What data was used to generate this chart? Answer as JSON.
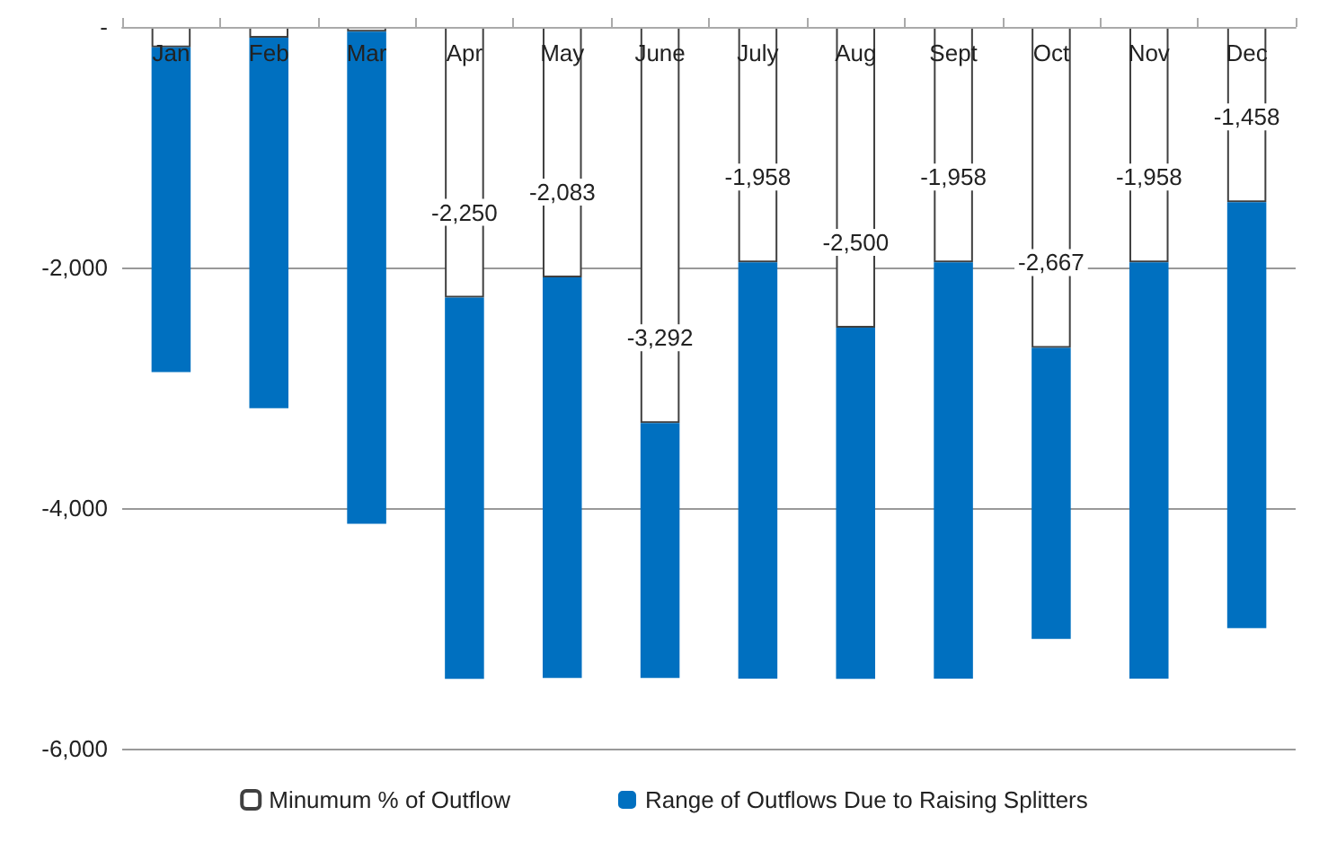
{
  "chart_data": {
    "type": "bar",
    "stacked": true,
    "categories": [
      "Jan",
      "Feb",
      "Mar",
      "Apr",
      "May",
      "June",
      "July",
      "Aug",
      "Sept",
      "Oct",
      "Nov",
      "Dec"
    ],
    "series": [
      {
        "name": "Minumum % of Outflow",
        "color": "#ffffff",
        "values": [
          -170,
          -90,
          -40,
          -2250,
          -2083,
          -3292,
          -1958,
          -2500,
          -1958,
          -2667,
          -1958,
          -1458
        ],
        "value_labels": [
          null,
          null,
          null,
          "-2,250",
          "-2,083",
          "-3,292",
          "-1,958",
          "-2,500",
          "-1,958",
          "-2,667",
          "-1,958",
          "-1,458"
        ]
      },
      {
        "name": "Range of Outflows Due to Raising Splitters",
        "color": "#0070c0",
        "values": [
          -2700,
          -3080,
          -4090,
          -3170,
          -3330,
          -2120,
          -3460,
          -2920,
          -3460,
          -2420,
          -3460,
          -3540
        ]
      }
    ],
    "ylim": [
      -6000,
      0
    ],
    "yticks": [
      {
        "value": 0,
        "label": "-"
      },
      {
        "value": -2000,
        "label": "-2,000"
      },
      {
        "value": -4000,
        "label": "-4,000"
      },
      {
        "value": -6000,
        "label": "-6,000"
      }
    ],
    "grid": "y",
    "legend": "bottom"
  }
}
